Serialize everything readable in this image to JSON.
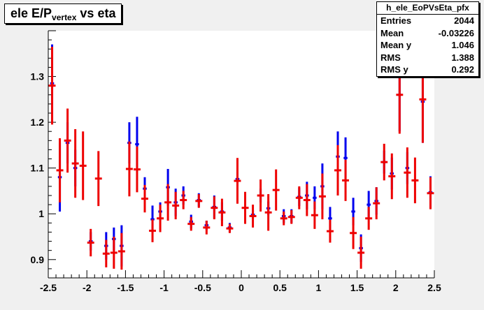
{
  "title": {
    "main": "ele E/P",
    "sub": "vertex",
    "rest": " vs eta"
  },
  "stats": {
    "name": "h_ele_EoPVsEta_pfx",
    "rows": [
      {
        "label": "Entries",
        "value": "2044"
      },
      {
        "label": "Mean",
        "value": "-0.03226"
      },
      {
        "label": "Mean y",
        "value": "1.046"
      },
      {
        "label": "RMS",
        "value": "1.388"
      },
      {
        "label": "RMS y",
        "value": "0.292"
      }
    ]
  },
  "chart_data": {
    "type": "scatter",
    "xlim": [
      -2.5,
      2.5
    ],
    "ylim": [
      0.86,
      1.4
    ],
    "xticks": [
      -2.5,
      -2,
      -1.5,
      -1,
      -0.5,
      0,
      0.5,
      1,
      1.5,
      2,
      2.5
    ],
    "xtick_labels": [
      "-2.5",
      "-2",
      "-1.5",
      "-1",
      "-0.5",
      "0",
      "0.5",
      "1",
      "1.5",
      "2",
      "2.5"
    ],
    "yticks": [
      0.9,
      1,
      1.1,
      1.2,
      1.3
    ],
    "ytick_labels": [
      "0.9",
      "1",
      "1.1",
      "1.2",
      "1.3"
    ],
    "grid": false,
    "series": [
      {
        "color": "#0000ee",
        "bin_half_width": 0.025,
        "points": [
          {
            "x": -2.45,
            "y": 1.285,
            "err": 0.085
          },
          {
            "x": -2.35,
            "y": 1.08,
            "err": 0.075
          },
          {
            "x": -2.25,
            "y": 1.155,
            "err": 0.045
          },
          {
            "x": -2.15,
            "y": 1.1,
            "err": 0.04
          },
          {
            "x": -1.95,
            "y": 0.94,
            "err": 0.02
          },
          {
            "x": -1.75,
            "y": 0.93,
            "err": 0.03
          },
          {
            "x": -1.65,
            "y": 0.945,
            "err": 0.025
          },
          {
            "x": -1.55,
            "y": 0.93,
            "err": 0.045
          },
          {
            "x": -1.45,
            "y": 1.155,
            "err": 0.045
          },
          {
            "x": -1.35,
            "y": 1.152,
            "err": 0.06
          },
          {
            "x": -1.25,
            "y": 1.055,
            "err": 0.025
          },
          {
            "x": -1.15,
            "y": 0.988,
            "err": 0.03
          },
          {
            "x": -1.05,
            "y": 1.005,
            "err": 0.02
          },
          {
            "x": -0.95,
            "y": 1.058,
            "err": 0.04
          },
          {
            "x": -0.85,
            "y": 1.025,
            "err": 0.03
          },
          {
            "x": -0.75,
            "y": 1.04,
            "err": 0.02
          },
          {
            "x": -0.65,
            "y": 0.983,
            "err": 0.015
          },
          {
            "x": -0.55,
            "y": 1.03,
            "err": 0.015
          },
          {
            "x": -0.45,
            "y": 0.975,
            "err": 0.01
          },
          {
            "x": -0.35,
            "y": 1.015,
            "err": 0.025
          },
          {
            "x": -0.25,
            "y": 1.005,
            "err": 0.02
          },
          {
            "x": -0.15,
            "y": 0.97,
            "err": 0.01
          },
          {
            "x": -0.05,
            "y": 1.076,
            "err": 0.015
          },
          {
            "x": 0.15,
            "y": 0.998,
            "err": 0.01
          },
          {
            "x": 0.25,
            "y": 1.04,
            "err": 0.015
          },
          {
            "x": 0.35,
            "y": 1.012,
            "err": 0.015
          },
          {
            "x": 0.55,
            "y": 0.995,
            "err": 0.015
          },
          {
            "x": 0.65,
            "y": 0.995,
            "err": 0.015
          },
          {
            "x": 0.75,
            "y": 1.037,
            "err": 0.02
          },
          {
            "x": 0.85,
            "y": 1.04,
            "err": 0.03
          },
          {
            "x": 0.95,
            "y": 1.035,
            "err": 0.025
          },
          {
            "x": 1.05,
            "y": 1.06,
            "err": 0.05
          },
          {
            "x": 1.15,
            "y": 0.99,
            "err": 0.025
          },
          {
            "x": 1.25,
            "y": 1.125,
            "err": 0.055
          },
          {
            "x": 1.35,
            "y": 1.122,
            "err": 0.045
          },
          {
            "x": 1.45,
            "y": 1.005,
            "err": 0.03
          },
          {
            "x": 1.55,
            "y": 0.925,
            "err": 0.03
          },
          {
            "x": 1.65,
            "y": 1.02,
            "err": 0.03
          },
          {
            "x": 1.75,
            "y": 1.028,
            "err": 0.03
          },
          {
            "x": 1.85,
            "y": 1.113,
            "err": 0.025
          },
          {
            "x": 1.95,
            "y": 1.088,
            "err": 0.035
          },
          {
            "x": 2.05,
            "y": 1.26,
            "err": 0.08
          },
          {
            "x": 2.15,
            "y": 1.1,
            "err": 0.035
          },
          {
            "x": 2.35,
            "y": 1.245,
            "err": 0.09
          },
          {
            "x": 2.45,
            "y": 1.047,
            "err": 0.035
          }
        ]
      },
      {
        "color": "#ee0000",
        "bin_half_width": 0.045,
        "points": [
          {
            "x": -2.45,
            "y": 1.28,
            "err": 0.085
          },
          {
            "x": -2.35,
            "y": 1.095,
            "err": 0.07
          },
          {
            "x": -2.25,
            "y": 1.16,
            "err": 0.07
          },
          {
            "x": -2.15,
            "y": 1.11,
            "err": 0.075
          },
          {
            "x": -2.05,
            "y": 1.105,
            "err": 0.075
          },
          {
            "x": -1.95,
            "y": 0.937,
            "err": 0.03
          },
          {
            "x": -1.85,
            "y": 1.077,
            "err": 0.06
          },
          {
            "x": -1.75,
            "y": 0.913,
            "err": 0.03
          },
          {
            "x": -1.65,
            "y": 0.915,
            "err": 0.035
          },
          {
            "x": -1.55,
            "y": 0.918,
            "err": 0.04
          },
          {
            "x": -1.45,
            "y": 1.098,
            "err": 0.06
          },
          {
            "x": -1.35,
            "y": 1.097,
            "err": 0.05
          },
          {
            "x": -1.25,
            "y": 1.033,
            "err": 0.03
          },
          {
            "x": -1.15,
            "y": 0.963,
            "err": 0.025
          },
          {
            "x": -1.05,
            "y": 0.99,
            "err": 0.03
          },
          {
            "x": -0.95,
            "y": 1.025,
            "err": 0.04
          },
          {
            "x": -0.85,
            "y": 1.018,
            "err": 0.03
          },
          {
            "x": -0.75,
            "y": 1.03,
            "err": 0.02
          },
          {
            "x": -0.65,
            "y": 0.978,
            "err": 0.015
          },
          {
            "x": -0.55,
            "y": 1.028,
            "err": 0.015
          },
          {
            "x": -0.45,
            "y": 0.97,
            "err": 0.015
          },
          {
            "x": -0.35,
            "y": 1.013,
            "err": 0.025
          },
          {
            "x": -0.25,
            "y": 1.003,
            "err": 0.03
          },
          {
            "x": -0.15,
            "y": 0.968,
            "err": 0.01
          },
          {
            "x": -0.05,
            "y": 1.072,
            "err": 0.05
          },
          {
            "x": 0.05,
            "y": 1.013,
            "err": 0.035
          },
          {
            "x": 0.15,
            "y": 0.995,
            "err": 0.025
          },
          {
            "x": 0.25,
            "y": 1.04,
            "err": 0.035
          },
          {
            "x": 0.35,
            "y": 1.003,
            "err": 0.04
          },
          {
            "x": 0.45,
            "y": 1.052,
            "err": 0.045
          },
          {
            "x": 0.55,
            "y": 0.99,
            "err": 0.015
          },
          {
            "x": 0.65,
            "y": 0.993,
            "err": 0.015
          },
          {
            "x": 0.75,
            "y": 1.035,
            "err": 0.025
          },
          {
            "x": 0.85,
            "y": 1.03,
            "err": 0.035
          },
          {
            "x": 0.95,
            "y": 0.997,
            "err": 0.03
          },
          {
            "x": 1.05,
            "y": 1.038,
            "err": 0.05
          },
          {
            "x": 1.15,
            "y": 0.962,
            "err": 0.025
          },
          {
            "x": 1.25,
            "y": 1.095,
            "err": 0.055
          },
          {
            "x": 1.35,
            "y": 1.073,
            "err": 0.045
          },
          {
            "x": 1.45,
            "y": 0.958,
            "err": 0.035
          },
          {
            "x": 1.55,
            "y": 0.915,
            "err": 0.035
          },
          {
            "x": 1.65,
            "y": 0.99,
            "err": 0.025
          },
          {
            "x": 1.75,
            "y": 1.023,
            "err": 0.035
          },
          {
            "x": 1.85,
            "y": 1.113,
            "err": 0.04
          },
          {
            "x": 1.95,
            "y": 1.082,
            "err": 0.05
          },
          {
            "x": 2.05,
            "y": 1.26,
            "err": 0.085
          },
          {
            "x": 2.15,
            "y": 1.09,
            "err": 0.055
          },
          {
            "x": 2.25,
            "y": 1.073,
            "err": 0.05
          },
          {
            "x": 2.35,
            "y": 1.25,
            "err": 0.095
          },
          {
            "x": 2.45,
            "y": 1.045,
            "err": 0.035
          }
        ]
      }
    ]
  }
}
